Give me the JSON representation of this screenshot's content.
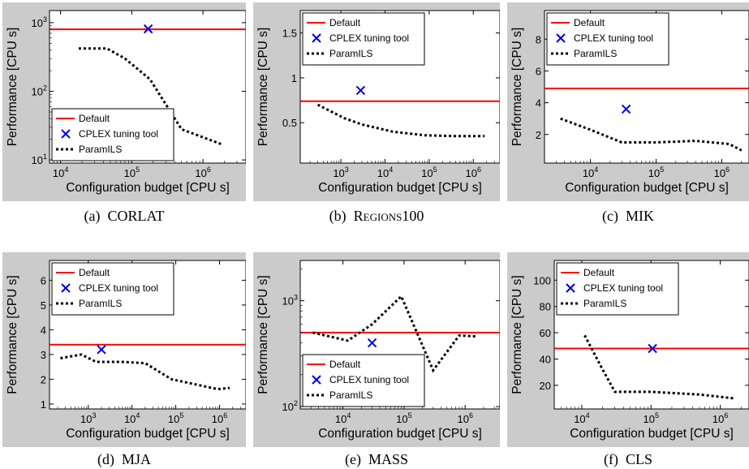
{
  "colors": {
    "default": "#ff0000",
    "cplex": "#0000ee",
    "paramils": "#000000",
    "panel_bg": "#cbcbcb"
  },
  "legend_labels": [
    "Default",
    "CPLEX tuning tool",
    "ParamILS"
  ],
  "chart_data": [
    {
      "id": "corlat",
      "type": "line",
      "caption_tag": "(a)",
      "caption": "CORLAT",
      "xlabel": "Configuration budget [CPU s]",
      "ylabel": "Performance [CPU s]",
      "xscale": "log",
      "yscale": "log",
      "xlim": [
        7000,
        4000000
      ],
      "ylim": [
        9,
        1500
      ],
      "xticks": [
        {
          "v": 10000,
          "b": "10",
          "e": "4"
        },
        {
          "v": 100000,
          "b": "10",
          "e": "5"
        },
        {
          "v": 1000000,
          "b": "10",
          "e": "6"
        }
      ],
      "yticks": [
        {
          "v": 10,
          "b": "10",
          "e": "1"
        },
        {
          "v": 100,
          "b": "10",
          "e": "2"
        },
        {
          "v": 1000,
          "b": "10",
          "e": "3"
        }
      ],
      "legend": "bottom-left",
      "default_value": 800,
      "cplex_point": [
        170000,
        810
      ],
      "paramils": [
        [
          18000,
          420
        ],
        [
          45000,
          420
        ],
        [
          80000,
          300
        ],
        [
          180000,
          150
        ],
        [
          500000,
          28
        ],
        [
          1800000,
          17
        ]
      ]
    },
    {
      "id": "regions100",
      "type": "line",
      "caption_tag": "(b)",
      "caption": "Regions100",
      "xlabel": "Configuration budget [CPU s]",
      "ylabel": "Performance [CPU s]",
      "xscale": "log",
      "yscale": "linear",
      "xlim": [
        120,
        4000000
      ],
      "ylim": [
        0.05,
        1.75
      ],
      "xticks": [
        {
          "v": 1000,
          "b": "10",
          "e": "3"
        },
        {
          "v": 10000,
          "b": "10",
          "e": "4"
        },
        {
          "v": 100000,
          "b": "10",
          "e": "5"
        },
        {
          "v": 1000000,
          "b": "10",
          "e": "6"
        }
      ],
      "yticks": [
        {
          "v": 0.5,
          "t": "0.5"
        },
        {
          "v": 1,
          "t": "1"
        },
        {
          "v": 1.5,
          "t": "1.5"
        }
      ],
      "legend": "top-left",
      "default_value": 0.74,
      "cplex_point": [
        2800,
        0.86
      ],
      "paramils": [
        [
          300,
          0.7
        ],
        [
          1200,
          0.55
        ],
        [
          3000,
          0.48
        ],
        [
          15000,
          0.4
        ],
        [
          80000,
          0.36
        ],
        [
          400000,
          0.35
        ],
        [
          1800000,
          0.35
        ]
      ]
    },
    {
      "id": "mik",
      "type": "line",
      "caption_tag": "(c)",
      "caption": "MIK",
      "xlabel": "Configuration budget [CPU s]",
      "ylabel": "Performance [CPU s]",
      "xscale": "log",
      "yscale": "linear",
      "xlim": [
        2000,
        2600000
      ],
      "ylim": [
        0.2,
        9.8
      ],
      "xticks": [
        {
          "v": 10000,
          "b": "10",
          "e": "4"
        },
        {
          "v": 100000,
          "b": "10",
          "e": "5"
        },
        {
          "v": 1000000,
          "b": "10",
          "e": "6"
        }
      ],
      "yticks": [
        {
          "v": 2,
          "t": "2"
        },
        {
          "v": 4,
          "t": "4"
        },
        {
          "v": 6,
          "t": "6"
        },
        {
          "v": 8,
          "t": "8"
        }
      ],
      "legend": "top-left",
      "default_value": 4.9,
      "cplex_point": [
        35000,
        3.6
      ],
      "paramils": [
        [
          3500,
          3.0
        ],
        [
          10000,
          2.3
        ],
        [
          30000,
          1.5
        ],
        [
          100000,
          1.5
        ],
        [
          400000,
          1.6
        ],
        [
          1300000,
          1.4
        ],
        [
          2000000,
          1.0
        ]
      ]
    },
    {
      "id": "mja",
      "type": "line",
      "caption_tag": "(d)",
      "caption": "MJA",
      "xlabel": "Configuration budget [CPU s]",
      "ylabel": "Performance [CPU s]",
      "xscale": "log",
      "yscale": "linear",
      "xlim": [
        130,
        4000000
      ],
      "ylim": [
        0.8,
        6.8
      ],
      "xticks": [
        {
          "v": 1000,
          "b": "10",
          "e": "3"
        },
        {
          "v": 10000,
          "b": "10",
          "e": "4"
        },
        {
          "v": 100000,
          "b": "10",
          "e": "5"
        },
        {
          "v": 1000000,
          "b": "10",
          "e": "6"
        }
      ],
      "yticks": [
        {
          "v": 1,
          "t": "1"
        },
        {
          "v": 2,
          "t": "2"
        },
        {
          "v": 3,
          "t": "3"
        },
        {
          "v": 4,
          "t": "4"
        },
        {
          "v": 5,
          "t": "5"
        },
        {
          "v": 6,
          "t": "6"
        }
      ],
      "legend": "top-left",
      "default_value": 3.4,
      "cplex_point": [
        2000,
        3.2
      ],
      "paramils": [
        [
          230,
          2.85
        ],
        [
          700,
          3.0
        ],
        [
          1500,
          2.7
        ],
        [
          6000,
          2.7
        ],
        [
          20000,
          2.65
        ],
        [
          80000,
          2.0
        ],
        [
          500000,
          1.7
        ],
        [
          900000,
          1.6
        ],
        [
          1700000,
          1.65
        ]
      ]
    },
    {
      "id": "mass",
      "type": "line",
      "caption_tag": "(e)",
      "caption": "MASS",
      "xlabel": "Configuration budget [CPU s]",
      "ylabel": "Performance [CPU s]",
      "xscale": "log",
      "yscale": "log",
      "xlim": [
        2000,
        3700000
      ],
      "ylim": [
        95,
        2400
      ],
      "xticks": [
        {
          "v": 10000,
          "b": "10",
          "e": "4"
        },
        {
          "v": 100000,
          "b": "10",
          "e": "5"
        },
        {
          "v": 1000000,
          "b": "10",
          "e": "6"
        }
      ],
      "yticks": [
        {
          "v": 100,
          "b": "10",
          "e": "2"
        },
        {
          "v": 1000,
          "b": "10",
          "e": "3"
        }
      ],
      "legend": "bottom-left",
      "default_value": 500,
      "cplex_point": [
        30000,
        400
      ],
      "paramils": [
        [
          3200,
          500
        ],
        [
          12000,
          420
        ],
        [
          30000,
          600
        ],
        [
          90000,
          1100
        ],
        [
          300000,
          220
        ],
        [
          800000,
          470
        ],
        [
          1500000,
          460
        ]
      ]
    },
    {
      "id": "cls",
      "type": "line",
      "caption_tag": "(f)",
      "caption": "CLS",
      "xlabel": "Configuration budget [CPU s]",
      "ylabel": "Performance [CPU s]",
      "xscale": "log",
      "yscale": "linear",
      "xlim": [
        4000,
        2600000
      ],
      "ylim": [
        2,
        115
      ],
      "xticks": [
        {
          "v": 10000,
          "b": "10",
          "e": "4"
        },
        {
          "v": 100000,
          "b": "10",
          "e": "5"
        },
        {
          "v": 1000000,
          "b": "10",
          "e": "6"
        }
      ],
      "yticks": [
        {
          "v": 20,
          "t": "20"
        },
        {
          "v": 40,
          "t": "40"
        },
        {
          "v": 60,
          "t": "60"
        },
        {
          "v": 80,
          "t": "80"
        },
        {
          "v": 100,
          "t": "100"
        }
      ],
      "legend": "top-left",
      "default_value": 48,
      "cplex_point": [
        105000,
        48
      ],
      "paramils": [
        [
          11000,
          58
        ],
        [
          20000,
          32
        ],
        [
          30000,
          15
        ],
        [
          100000,
          15
        ],
        [
          500000,
          13
        ],
        [
          1600000,
          10
        ]
      ]
    }
  ]
}
